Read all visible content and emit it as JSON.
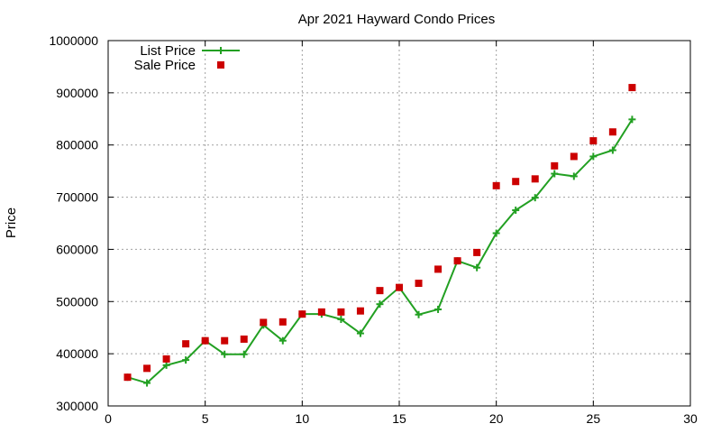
{
  "chart_data": {
    "type": "line",
    "title": "Apr 2021 Hayward Condo Prices",
    "xlabel": "",
    "ylabel": "Price",
    "xlim": [
      0,
      30
    ],
    "ylim": [
      300000,
      1000000
    ],
    "x_ticks": [
      0,
      5,
      10,
      15,
      20,
      25,
      30
    ],
    "y_ticks": [
      300000,
      400000,
      500000,
      600000,
      700000,
      800000,
      900000,
      1000000
    ],
    "grid": true,
    "legend_position": "top-left",
    "series": [
      {
        "name": "List Price",
        "style": "line-points",
        "color": "#22a022",
        "x": [
          1,
          2,
          3,
          4,
          5,
          6,
          7,
          8,
          9,
          10,
          11,
          12,
          13,
          14,
          15,
          16,
          17,
          18,
          19,
          20,
          21,
          22,
          23,
          24,
          25,
          26,
          27
        ],
        "values": [
          355000,
          344000,
          378000,
          388000,
          425000,
          399000,
          399000,
          455000,
          425000,
          476000,
          476000,
          466000,
          439000,
          495000,
          527000,
          475000,
          485000,
          578000,
          565000,
          631000,
          675000,
          699000,
          745000,
          740000,
          778000,
          790000,
          849000
        ]
      },
      {
        "name": "Sale Price",
        "style": "points",
        "color": "#cc0000",
        "x": [
          1,
          2,
          3,
          4,
          5,
          6,
          7,
          8,
          9,
          10,
          11,
          12,
          13,
          14,
          15,
          16,
          17,
          18,
          19,
          20,
          21,
          22,
          23,
          24,
          25,
          26,
          27
        ],
        "values": [
          355000,
          372000,
          390000,
          419000,
          425000,
          425000,
          428000,
          460000,
          461000,
          476000,
          480000,
          480000,
          482000,
          521000,
          527000,
          535000,
          562000,
          578000,
          594000,
          722000,
          730000,
          735000,
          760000,
          778000,
          808000,
          825000,
          910000
        ]
      }
    ]
  }
}
